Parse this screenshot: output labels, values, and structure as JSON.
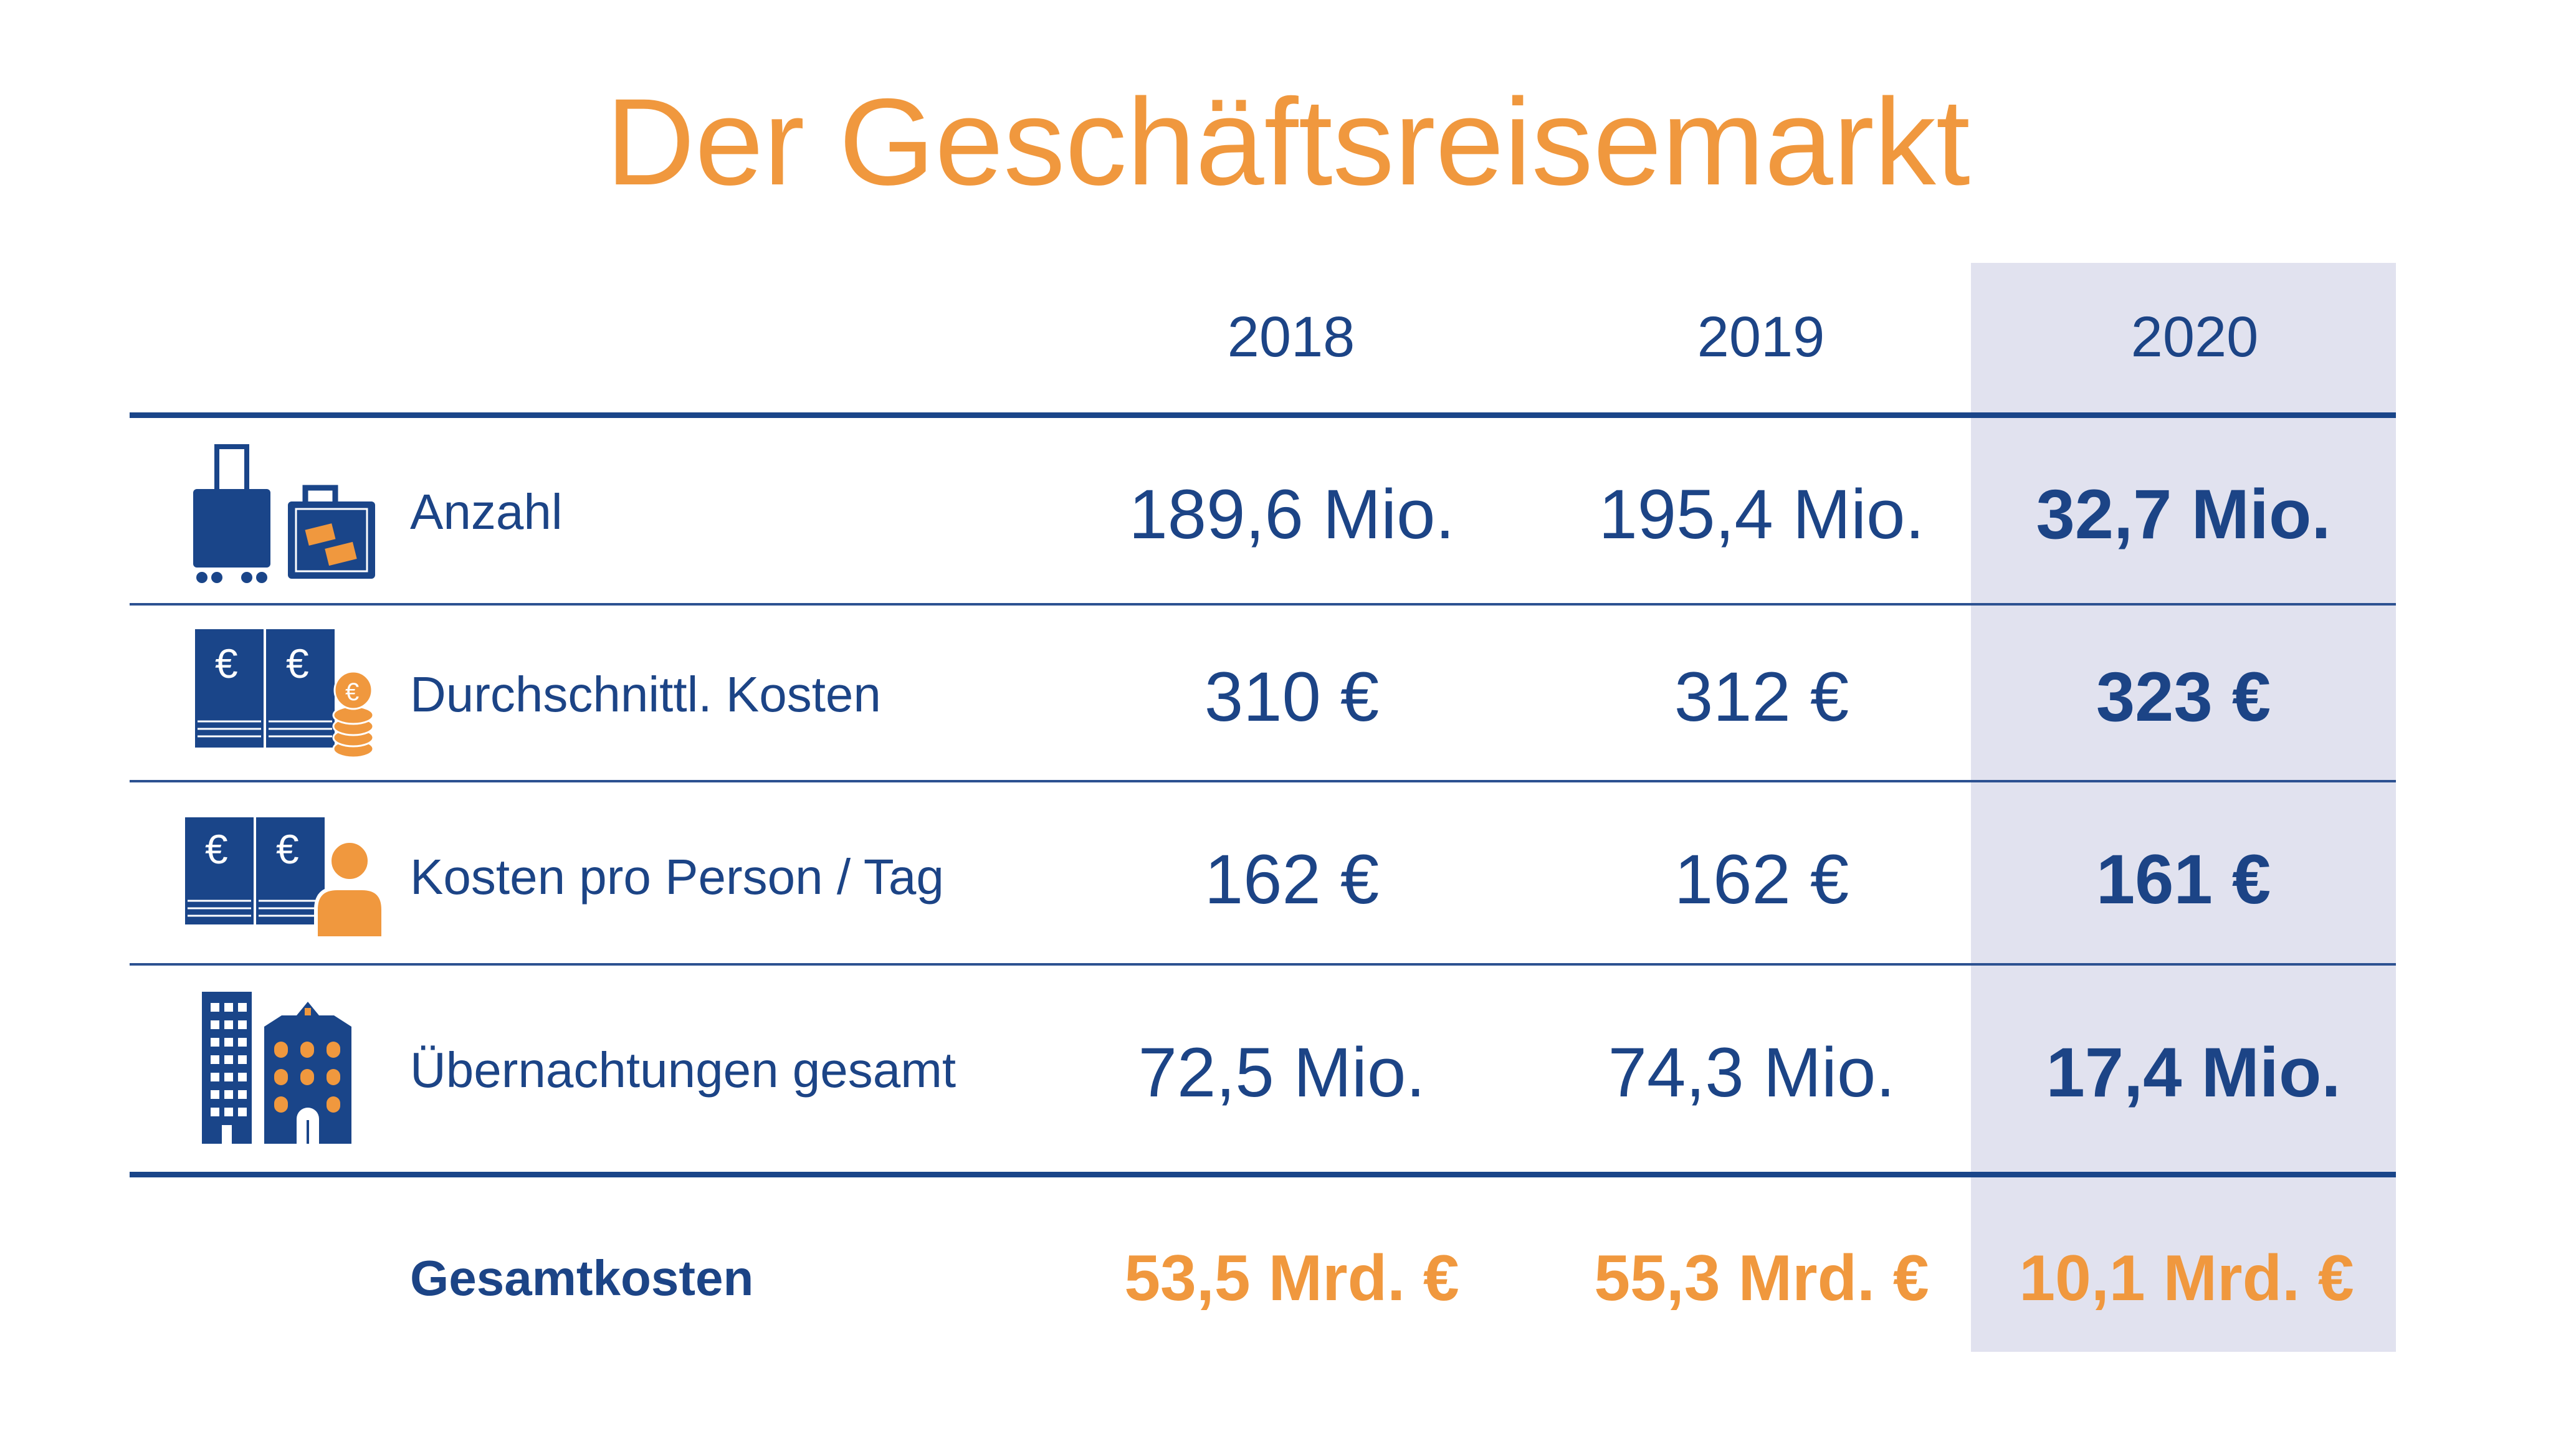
{
  "title": "Der Geschäftsreisemarkt",
  "colors": {
    "accent_orange": "#f0983e",
    "navy": "#1c4486",
    "highlight_bg": "#e1e2ef"
  },
  "chart_data": {
    "type": "table",
    "title": "Der Geschäftsreisemarkt",
    "columns": [
      "2018",
      "2019",
      "2020"
    ],
    "highlighted_column": "2020",
    "rows": [
      {
        "label": "Anzahl",
        "icon": "luggage-icon",
        "values": [
          "189,6 Mio.",
          "195,4 Mio.",
          "32,7 Mio."
        ],
        "numeric": [
          189.6,
          195.4,
          32.7
        ],
        "unit": "Mio."
      },
      {
        "label": "Durchschnittl. Kosten",
        "icon": "euro-notes-coins-icon",
        "values": [
          "310 €",
          "312 €",
          "323 €"
        ],
        "numeric": [
          310,
          312,
          323
        ],
        "unit": "€"
      },
      {
        "label": "Kosten pro Person / Tag",
        "icon": "euro-notes-person-icon",
        "values": [
          "162 €",
          "162 €",
          "161 €"
        ],
        "numeric": [
          162,
          162,
          161
        ],
        "unit": "€"
      },
      {
        "label": "Übernachtungen gesamt",
        "icon": "hotel-buildings-icon",
        "values": [
          "72,5 Mio.",
          "74,3 Mio.",
          "17,4 Mio."
        ],
        "numeric": [
          72.5,
          74.3,
          17.4
        ],
        "unit": "Mio."
      }
    ],
    "total": {
      "label": "Gesamtkosten",
      "values": [
        "53,5 Mrd. €",
        "55,3 Mrd. €",
        "10,1 Mrd. €"
      ],
      "numeric": [
        53.5,
        55.3,
        10.1
      ],
      "unit": "Mrd. €"
    }
  }
}
